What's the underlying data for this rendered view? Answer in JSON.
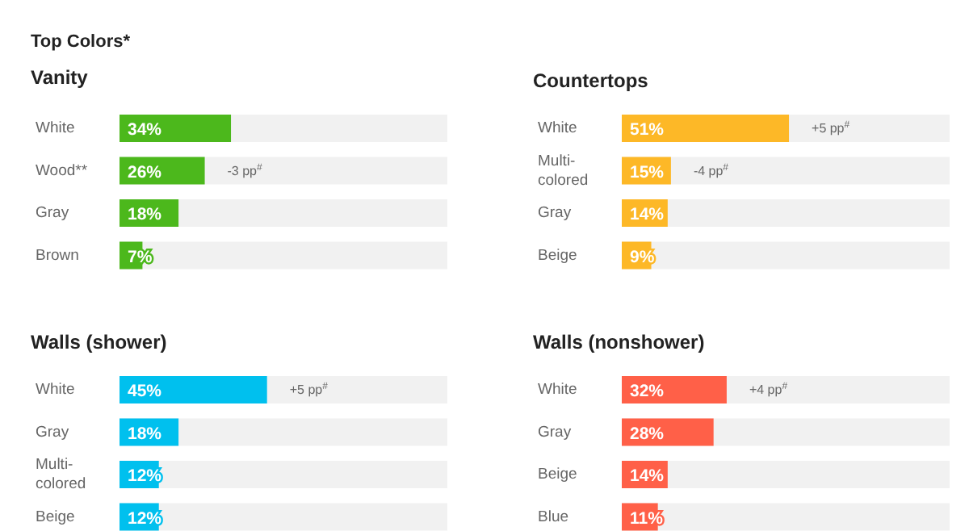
{
  "chart_data": [
    {
      "type": "bar",
      "orientation": "horizontal",
      "title": "Top Colors*",
      "subtitle": "Vanity",
      "categories": [
        "White",
        "Wood**",
        "Gray",
        "Brown"
      ],
      "values": [
        34,
        26,
        18,
        7
      ],
      "value_labels": [
        "34%",
        "26%",
        "18%",
        "7%"
      ],
      "color": "#4cb81c",
      "xlim": [
        0,
        100
      ],
      "tick_labels": "y",
      "annotations": [
        {
          "text": "-3 pp$^{#}$",
          "x": 26,
          "y": "Wood**"
        }
      ]
    },
    {
      "type": "bar",
      "orientation": "horizontal",
      "title": "Countertops",
      "categories": [
        "White",
        "Multi-colored",
        "Gray",
        "Beige"
      ],
      "values": [
        51,
        15,
        14,
        9
      ],
      "value_labels": [
        "51%",
        "15%",
        "14%",
        "9%"
      ],
      "color": "#fdb827",
      "xlim": [
        0,
        100
      ],
      "tick_labels": "y",
      "annotations": [
        {
          "text": "+5 pp$^{#}$",
          "x": 51,
          "y": "White"
        },
        {
          "text": "-4 pp$^{#}$",
          "x": 15,
          "y": "Multi-colored"
        }
      ]
    },
    {
      "type": "bar",
      "orientation": "horizontal",
      "title": "Walls (shower)",
      "categories": [
        "White",
        "Gray",
        "Multi-colored",
        "Beige"
      ],
      "values": [
        45,
        18,
        12,
        12
      ],
      "value_labels": [
        "45%",
        "18%",
        "12%",
        "12%"
      ],
      "color": "#00c0ee",
      "xlim": [
        0,
        100
      ],
      "tick_labels": "y",
      "annotations": [
        {
          "text": "+5 pp$^{#}$",
          "x": 45,
          "y": "White"
        }
      ]
    },
    {
      "type": "bar",
      "orientation": "horizontal",
      "title": "Walls (nonshower)",
      "categories": [
        "White",
        "Gray",
        "Beige",
        "Blue"
      ],
      "values": [
        32,
        28,
        14,
        11
      ],
      "value_labels": [
        "32%",
        "28%",
        "14%",
        "11%"
      ],
      "color": "#ff6048",
      "xlim": [
        0,
        100
      ],
      "tick_labels": "y",
      "annotations": [
        {
          "text": "+4 pp$^{#}$",
          "x": 32,
          "y": "White"
        }
      ]
    }
  ]
}
